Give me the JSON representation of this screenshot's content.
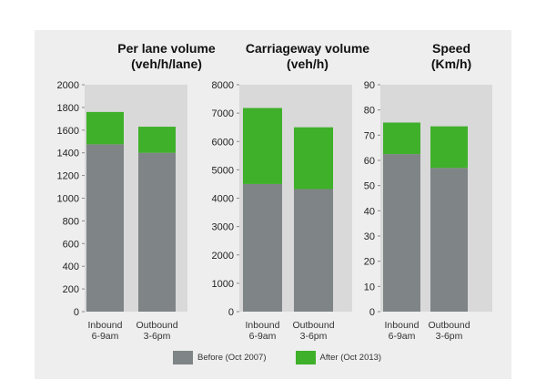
{
  "legend": {
    "before": {
      "label": "Before (Oct 2007)",
      "color": "#7f8486"
    },
    "after": {
      "label": "After (Oct 2013)",
      "color": "#3fb02a"
    }
  },
  "chart_data": [
    {
      "type": "bar",
      "stacked": true,
      "title": [
        "Per lane volume",
        "(veh/h/lane)"
      ],
      "categories": [
        [
          "Inbound",
          "6-9am"
        ],
        [
          "Outbound",
          "3-6pm"
        ]
      ],
      "series": [
        {
          "name": "Before (Oct 2007)",
          "values": [
            1475,
            1400
          ]
        },
        {
          "name": "After (Oct 2013)",
          "values": [
            285,
            230
          ]
        }
      ],
      "ylim": [
        0,
        2000
      ],
      "yticks": [
        0,
        200,
        400,
        600,
        800,
        1000,
        1200,
        1400,
        1600,
        1800,
        2000
      ],
      "grid": false,
      "legend": "bottom"
    },
    {
      "type": "bar",
      "stacked": true,
      "title": [
        "Carriageway volume",
        "(veh/h)"
      ],
      "categories": [
        [
          "Inbound",
          "6-9am"
        ],
        [
          "Outbound",
          "3-6pm"
        ]
      ],
      "series": [
        {
          "name": "Before (Oct 2007)",
          "values": [
            4500,
            4320
          ]
        },
        {
          "name": "After (Oct 2013)",
          "values": [
            2680,
            2180
          ]
        }
      ],
      "ylim": [
        0,
        8000
      ],
      "yticks": [
        0,
        1000,
        2000,
        3000,
        4000,
        5000,
        6000,
        7000,
        8000
      ],
      "grid": false,
      "legend": "bottom"
    },
    {
      "type": "bar",
      "stacked": true,
      "title": [
        "Speed",
        "(Km/h)"
      ],
      "categories": [
        [
          "Inbound",
          "6-9am"
        ],
        [
          "Outbound",
          "3-6pm"
        ]
      ],
      "series": [
        {
          "name": "Before (Oct 2007)",
          "values": [
            62.5,
            57
          ]
        },
        {
          "name": "After (Oct 2013)",
          "values": [
            12.5,
            16.5
          ]
        }
      ],
      "ylim": [
        0,
        90
      ],
      "yticks": [
        0,
        10,
        20,
        30,
        40,
        50,
        60,
        70,
        80,
        90
      ],
      "grid": false,
      "legend": "bottom"
    }
  ]
}
